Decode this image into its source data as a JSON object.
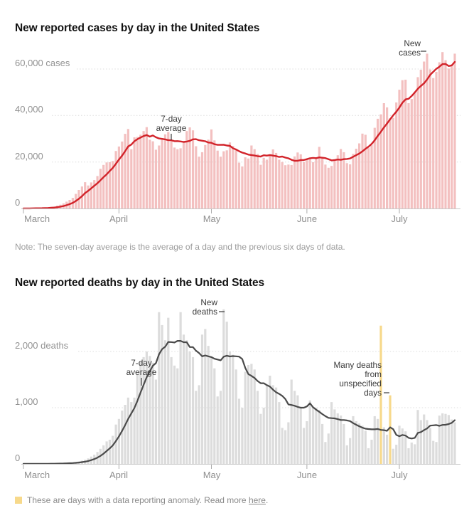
{
  "charts_common": {
    "x_axis_months": [
      "March",
      "April",
      "May",
      "June",
      "July"
    ],
    "date_range": {
      "start": "2020-03-01",
      "end": "2020-07-19"
    }
  },
  "note": {
    "text": "Note: The seven-day average is the average of a day and the previous six days of data."
  },
  "footer": {
    "swatch_color": "#f7d98b",
    "legend_text": "These are days with a data reporting anomaly. Read more ",
    "link_text": "here",
    "suffix": "."
  },
  "chart_data": [
    {
      "type": "bar",
      "title": "New reported cases by day in the United States",
      "unit": "cases",
      "months": [
        "March",
        "April",
        "May",
        "June",
        "July"
      ],
      "yticks": [
        {
          "value": 60000,
          "label": "60,000 cases"
        },
        {
          "value": 40000,
          "label": "40,000"
        },
        {
          "value": 20000,
          "label": "20,000"
        },
        {
          "value": 0,
          "label": "0"
        }
      ],
      "ylim": [
        0,
        70000
      ],
      "grid": "dashed-horizontal",
      "bar_color": "#f3c0c0",
      "overlay_line": {
        "name": "7-day average",
        "derivation": "average of a day and the previous six days",
        "color": "#d2232a"
      },
      "annotations": [
        {
          "id": "new-cases",
          "lines": [
            "New",
            "cases"
          ],
          "points_to": "July 10 bar, 66,600 cases"
        },
        {
          "id": "seven-day-average",
          "lines": [
            "7-day",
            "average"
          ],
          "points_to": "average line in mid-April"
        }
      ],
      "daily_values": [
        24,
        21,
        74,
        107,
        157,
        218,
        273,
        343,
        435,
        601,
        788,
        1237,
        1611,
        2175,
        2954,
        3680,
        4550,
        6280,
        7970,
        9450,
        11300,
        9900,
        11200,
        12200,
        13970,
        17050,
        18740,
        19820,
        19913,
        20430,
        24742,
        26660,
        28800,
        32100,
        34200,
        25500,
        30600,
        30800,
        31700,
        33300,
        35000,
        29600,
        28900,
        25300,
        27100,
        30300,
        31900,
        32900,
        29100,
        26200,
        25500,
        25900,
        28800,
        33300,
        34900,
        33600,
        26800,
        22300,
        24200,
        27300,
        29600,
        34000,
        29300,
        24900,
        22300,
        24600,
        25000,
        28400,
        26900,
        25600,
        19700,
        18100,
        22000,
        21500,
        27100,
        25500,
        23500,
        18800,
        21800,
        21000,
        23300,
        25400,
        23900,
        21000,
        20000,
        18600,
        18900,
        18700,
        22400,
        24100,
        23300,
        20000,
        21000,
        21700,
        19900,
        21500,
        26500,
        22200,
        18900,
        17500,
        18300,
        21100,
        22900,
        25600,
        24200,
        19500,
        19000,
        23500,
        25700,
        28000,
        32200,
        31700,
        26100,
        27200,
        34700,
        38600,
        40500,
        45300,
        43500,
        38800,
        39000,
        45600,
        51100,
        55200,
        55400,
        45300,
        47100,
        49800,
        56500,
        59700,
        63200,
        66600,
        59800,
        56100,
        58800,
        62900,
        67300,
        63800,
        60200,
        61800,
        66600
      ]
    },
    {
      "type": "bar",
      "title": "New reported deaths by day in the United States",
      "unit": "deaths",
      "months": [
        "March",
        "April",
        "May",
        "June",
        "July"
      ],
      "yticks": [
        {
          "value": 2000,
          "label": "2,000 deaths"
        },
        {
          "value": 1000,
          "label": "1,000"
        },
        {
          "value": 0,
          "label": "0"
        }
      ],
      "ylim": [
        0,
        2800
      ],
      "grid": "dashed-horizontal",
      "bar_color": "#dcdcdc",
      "overlay_line": {
        "name": "7-day average",
        "derivation": "average of a day and the previous six days, anomaly days excluded",
        "color": "#4a4a4a"
      },
      "anomalies": {
        "indices": [
          116,
          119
        ],
        "dates": [
          "June 25",
          "June 28"
        ],
        "color": "#f7d98b",
        "meaning": "days with a data reporting anomaly"
      },
      "annotations": [
        {
          "id": "new-deaths",
          "lines": [
            "New",
            "deaths"
          ],
          "points_to": "May 5 bar, 2,750 deaths"
        },
        {
          "id": "seven-day-average",
          "lines": [
            "7-day",
            "average"
          ],
          "points_to": "average line in early April"
        },
        {
          "id": "unspecified-days",
          "lines": [
            "Many deaths",
            "from",
            "unspecified",
            "days"
          ],
          "points_to": "yellow anomaly bars in late June"
        }
      ],
      "daily_values": [
        1,
        4,
        1,
        3,
        2,
        3,
        4,
        4,
        5,
        6,
        7,
        9,
        11,
        13,
        16,
        23,
        26,
        37,
        46,
        57,
        73,
        97,
        130,
        165,
        213,
        268,
        330,
        400,
        430,
        500,
        700,
        800,
        950,
        1050,
        1180,
        1100,
        1180,
        1600,
        1830,
        1900,
        2000,
        1920,
        1800,
        1500,
        2700,
        2470,
        2200,
        2600,
        1900,
        1750,
        1700,
        2700,
        2300,
        2200,
        2000,
        1900,
        1300,
        1400,
        2300,
        2400,
        2100,
        1900,
        1700,
        1200,
        1300,
        2750,
        2530,
        2000,
        1940,
        1680,
        1160,
        1000,
        1640,
        1760,
        1780,
        1680,
        1300,
        890,
        1000,
        1400,
        1570,
        1400,
        1360,
        1100,
        640,
        600,
        740,
        1500,
        1300,
        1220,
        1000,
        640,
        760,
        1130,
        1000,
        1000,
        960,
        710,
        390,
        540,
        1100,
        970,
        900,
        860,
        710,
        330,
        460,
        850,
        760,
        720,
        680,
        590,
        280,
        430,
        850,
        800,
        2460,
        650,
        520,
        1220,
        270,
        340,
        680,
        630,
        580,
        280,
        380,
        350,
        960,
        780,
        880,
        780,
        640,
        410,
        390,
        860,
        900,
        890,
        870,
        790,
        740
      ]
    }
  ]
}
